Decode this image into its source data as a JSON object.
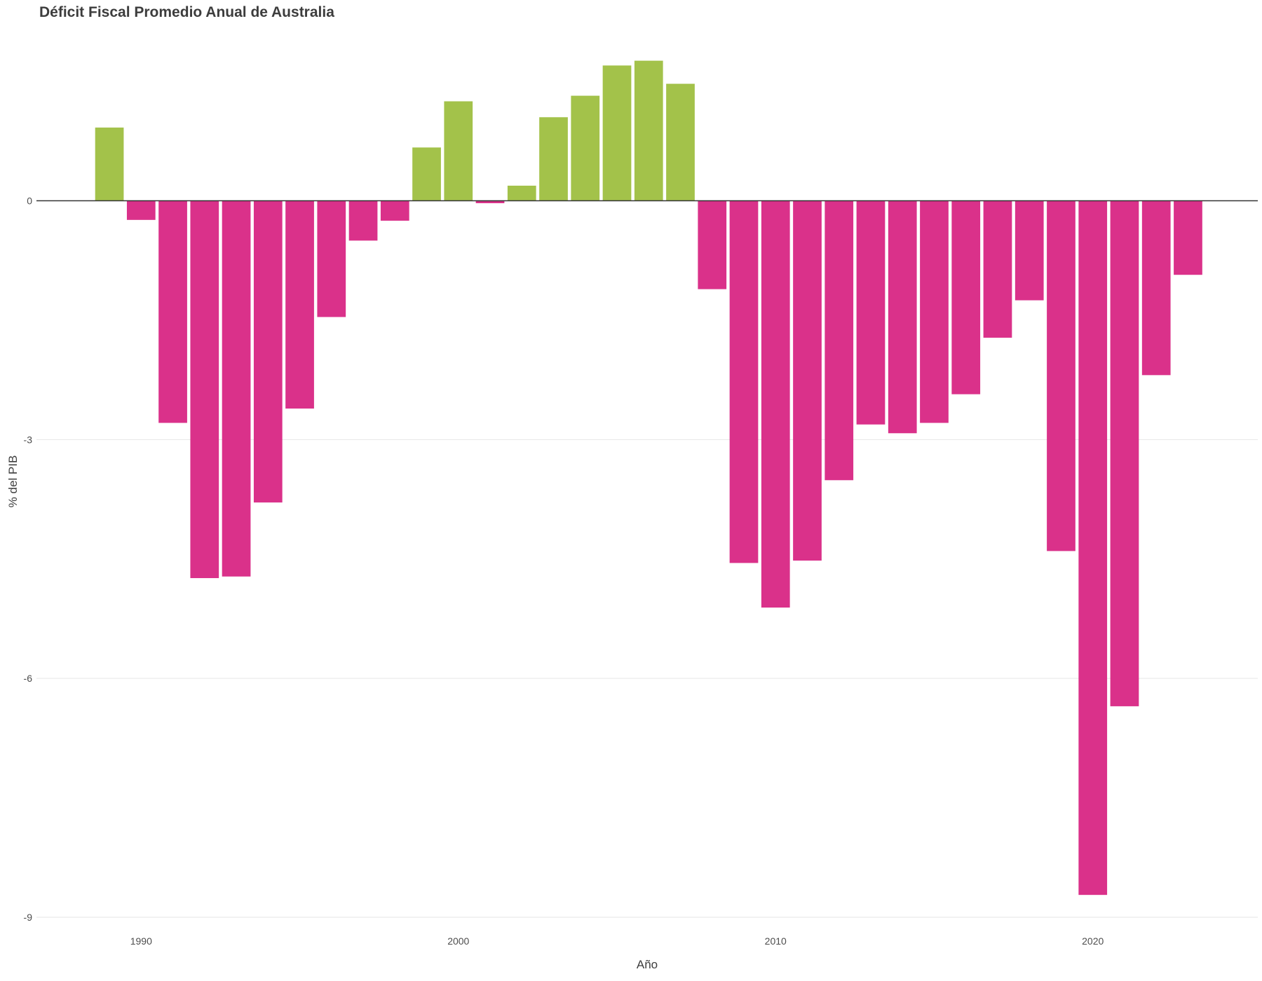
{
  "chart_data": {
    "type": "bar",
    "title": "Déficit Fiscal Promedio Anual de Australia",
    "xlabel": "Año",
    "ylabel": "% del PIB",
    "ylim": [
      -9.15,
      2.1
    ],
    "xlim": [
      1986.7,
      2025.2
    ],
    "yticks": [
      0,
      -3,
      -6,
      -9
    ],
    "xticks": [
      1990,
      2000,
      2010,
      2020
    ],
    "grid": true,
    "legend": "none",
    "colors": {
      "positive": "#a3c24a",
      "negative": "#da318a",
      "zero_line": "#333333",
      "grid": "#e6e6e6"
    },
    "x": [
      1989,
      1990,
      1991,
      1992,
      1993,
      1994,
      1995,
      1996,
      1997,
      1998,
      1999,
      2000,
      2001,
      2002,
      2003,
      2004,
      2005,
      2006,
      2007,
      2008,
      2009,
      2010,
      2011,
      2012,
      2013,
      2014,
      2015,
      2016,
      2017,
      2018,
      2019,
      2020,
      2021,
      2022,
      2023
    ],
    "values": [
      0.92,
      -0.24,
      -2.79,
      -4.74,
      -4.72,
      -3.79,
      -2.61,
      -1.46,
      -0.5,
      -0.25,
      0.67,
      1.25,
      -0.03,
      0.19,
      1.05,
      1.32,
      1.7,
      1.76,
      1.47,
      -1.11,
      -4.55,
      -5.11,
      -4.52,
      -3.51,
      -2.81,
      -2.92,
      -2.79,
      -2.43,
      -1.72,
      -1.25,
      -4.4,
      -8.72,
      -6.35,
      -2.19,
      -0.93
    ]
  }
}
